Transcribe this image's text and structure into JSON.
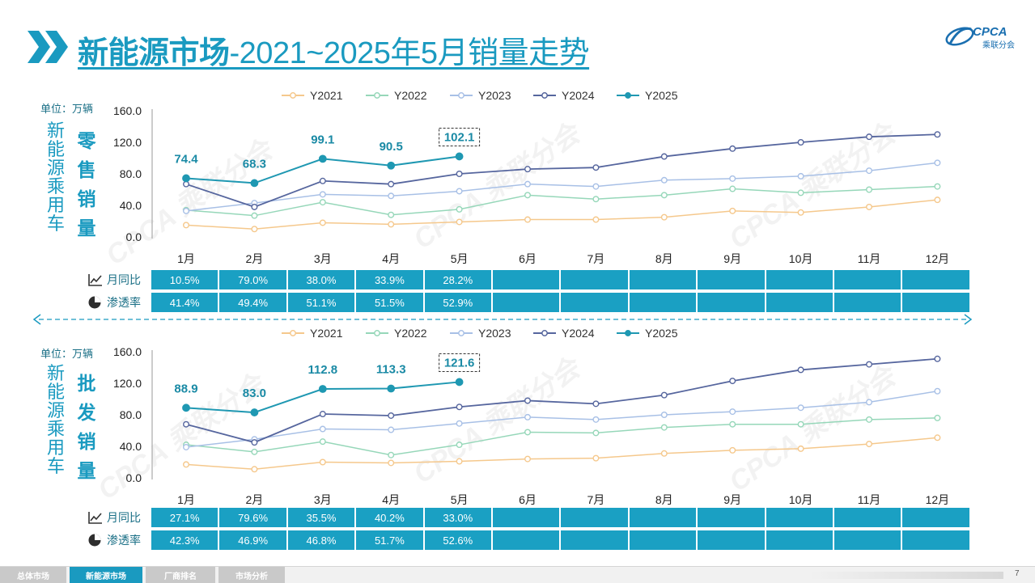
{
  "title": {
    "main": "新能源市场",
    "rest": "-2021~2025年5月销量走势"
  },
  "logo": {
    "text": "CPCA",
    "sub": "乘联分会"
  },
  "months": [
    "1月",
    "2月",
    "3月",
    "4月",
    "5月",
    "6月",
    "7月",
    "8月",
    "9月",
    "10月",
    "11月",
    "12月"
  ],
  "legend": [
    "Y2021",
    "Y2022",
    "Y2023",
    "Y2024",
    "Y2025"
  ],
  "colors": {
    "Y2021": "#f5c88c",
    "Y2022": "#96d7b9",
    "Y2023": "#a8c0e6",
    "Y2024": "#56669e",
    "Y2025": "#1f98b2",
    "accent": "#1a9ac0",
    "cell": "#1aa0c3"
  },
  "side_label": "新能源乘用车",
  "unit": "单位：万辆",
  "row_labels": {
    "yoy": "月同比",
    "pen": "渗透率"
  },
  "row_icons": {
    "yoy": "trend-line-icon",
    "pen": "pie-chart-icon"
  },
  "watermark": "CPCA 乘联分会",
  "chart_data": [
    {
      "type": "line",
      "title": "零售销量",
      "ylabel": "单位：万辆",
      "ylim": [
        0,
        160
      ],
      "yticks": [
        "0.0",
        "40.0",
        "80.0",
        "120.0",
        "160.0"
      ],
      "categories": [
        "1月",
        "2月",
        "3月",
        "4月",
        "5月",
        "6月",
        "7月",
        "8月",
        "9月",
        "10月",
        "11月",
        "12月"
      ],
      "series": [
        {
          "name": "Y2021",
          "values": [
            15,
            10,
            18,
            16,
            19,
            22,
            22,
            25,
            33,
            31,
            38,
            47
          ]
        },
        {
          "name": "Y2022",
          "values": [
            34,
            27,
            44,
            28,
            35,
            53,
            48,
            53,
            61,
            56,
            60,
            64
          ]
        },
        {
          "name": "Y2023",
          "values": [
            33,
            43,
            54,
            52,
            58,
            67,
            64,
            72,
            74,
            77,
            84,
            94
          ]
        },
        {
          "name": "Y2024",
          "values": [
            67,
            38,
            71,
            67,
            80,
            86,
            88,
            102,
            112,
            120,
            127,
            130
          ]
        },
        {
          "name": "Y2025",
          "values": [
            74.4,
            68.3,
            99.1,
            90.5,
            102.1,
            null,
            null,
            null,
            null,
            null,
            null,
            null
          ]
        }
      ],
      "labels": [
        "74.4",
        "68.3",
        "99.1",
        "90.5",
        "102.1"
      ],
      "yoy": [
        "10.5%",
        "79.0%",
        "38.0%",
        "33.9%",
        "28.2%"
      ],
      "penetration": [
        "41.4%",
        "49.4%",
        "51.1%",
        "51.5%",
        "52.9%"
      ]
    },
    {
      "type": "line",
      "title": "批发销量",
      "ylabel": "单位：万辆",
      "ylim": [
        0,
        160
      ],
      "yticks": [
        "0.0",
        "40.0",
        "80.0",
        "120.0",
        "160.0"
      ],
      "categories": [
        "1月",
        "2月",
        "3月",
        "4月",
        "5月",
        "6月",
        "7月",
        "8月",
        "9月",
        "10月",
        "11月",
        "12月"
      ],
      "series": [
        {
          "name": "Y2021",
          "values": [
            17,
            11,
            20,
            19,
            21,
            24,
            25,
            31,
            35,
            37,
            43,
            51
          ]
        },
        {
          "name": "Y2022",
          "values": [
            42,
            33,
            46,
            29,
            42,
            58,
            57,
            64,
            68,
            68,
            74,
            76
          ]
        },
        {
          "name": "Y2023",
          "values": [
            39,
            49,
            62,
            61,
            69,
            77,
            74,
            80,
            84,
            89,
            96,
            110
          ]
        },
        {
          "name": "Y2024",
          "values": [
            68,
            45,
            81,
            79,
            90,
            98,
            94,
            105,
            123,
            137,
            144,
            151
          ]
        },
        {
          "name": "Y2025",
          "values": [
            88.9,
            83.0,
            112.8,
            113.3,
            121.6,
            null,
            null,
            null,
            null,
            null,
            null,
            null
          ]
        }
      ],
      "labels": [
        "88.9",
        "83.0",
        "112.8",
        "113.3",
        "121.6"
      ],
      "yoy": [
        "27.1%",
        "79.6%",
        "35.5%",
        "40.2%",
        "33.0%"
      ],
      "penetration": [
        "42.3%",
        "46.9%",
        "46.8%",
        "51.7%",
        "52.6%"
      ]
    }
  ],
  "tabs": [
    {
      "label": "总体市场",
      "active": false
    },
    {
      "label": "新能源市场",
      "active": true
    },
    {
      "label": "厂商排名",
      "active": false
    },
    {
      "label": "市场分析",
      "active": false
    }
  ],
  "page_number": "7"
}
